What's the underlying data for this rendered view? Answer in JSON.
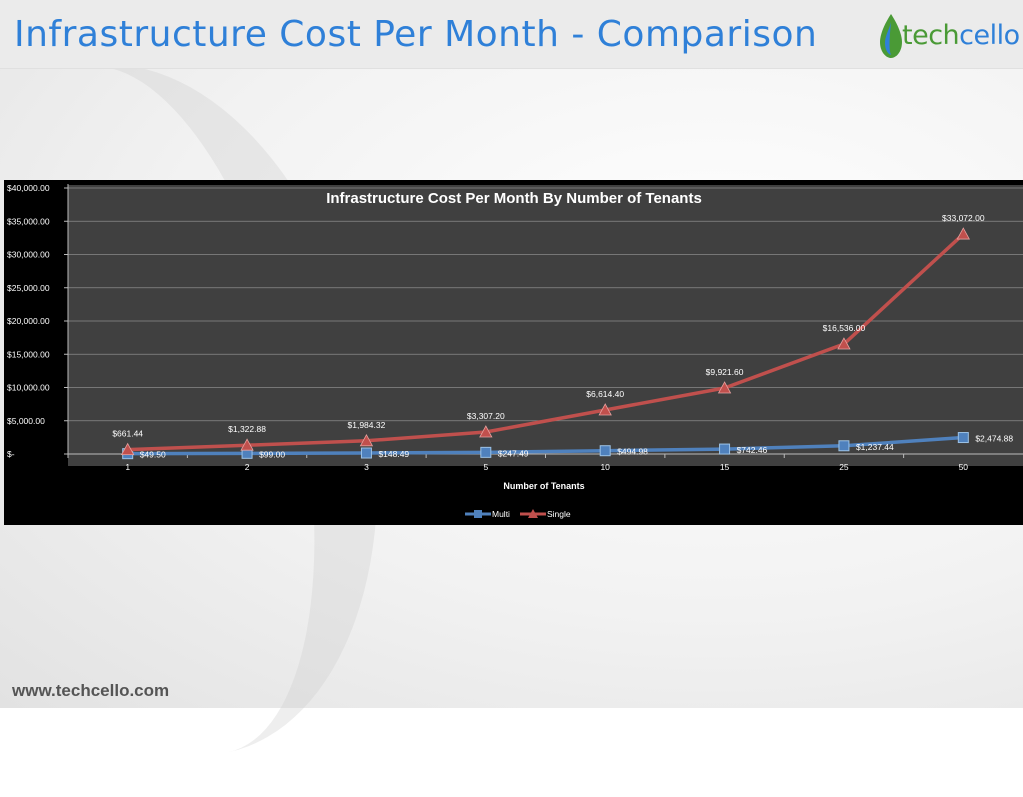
{
  "page": {
    "title": "Infrastructure Cost Per Month - Comparison",
    "footer_url": "www.techcello.com"
  },
  "logo": {
    "part1": "tech",
    "part2": "cello",
    "color1": "#4a9a36",
    "color2": "#2f80d8"
  },
  "colors": {
    "title_blue": "#2f80d8",
    "plot_bg": "#404040",
    "chart_bg": "#000000",
    "multi": "#4f81bd",
    "single": "#c0504d"
  },
  "chart_data": {
    "type": "line",
    "title": "Infrastructure Cost Per Month By Number of Tenants",
    "xlabel": "Number of Tenants",
    "ylabel": "",
    "categories": [
      "1",
      "2",
      "3",
      "5",
      "10",
      "15",
      "25",
      "50"
    ],
    "ylim": [
      0,
      40000
    ],
    "yticks": [
      0,
      5000,
      10000,
      15000,
      20000,
      25000,
      30000,
      35000,
      40000
    ],
    "ytick_labels": [
      "$-",
      "$5,000.00",
      "$10,000.00",
      "$15,000.00",
      "$20,000.00",
      "$25,000.00",
      "$30,000.00",
      "$35,000.00",
      "$40,000.00"
    ],
    "grid": true,
    "legend_position": "bottom",
    "series": [
      {
        "name": "Multi",
        "color": "#4f81bd",
        "marker": "square",
        "values": [
          49.5,
          99,
          148.49,
          247.49,
          494.98,
          742.46,
          1237.44,
          2474.88
        ],
        "labels": [
          "$49.50",
          "$99.00",
          "$148.49",
          "$247.49",
          "$494.98",
          "$742.46",
          "$1,237.44",
          "$2,474.88"
        ]
      },
      {
        "name": "Single",
        "color": "#c0504d",
        "marker": "triangle",
        "values": [
          661.44,
          1322.88,
          1984.32,
          3307.2,
          6614.4,
          9921.6,
          16536,
          33072
        ],
        "labels": [
          "$661.44",
          "$1,322.88",
          "$1,984.32",
          "$3,307.20",
          "$6,614.40",
          "$9,921.60",
          "$16,536.00",
          "$33,072.00"
        ]
      }
    ]
  }
}
